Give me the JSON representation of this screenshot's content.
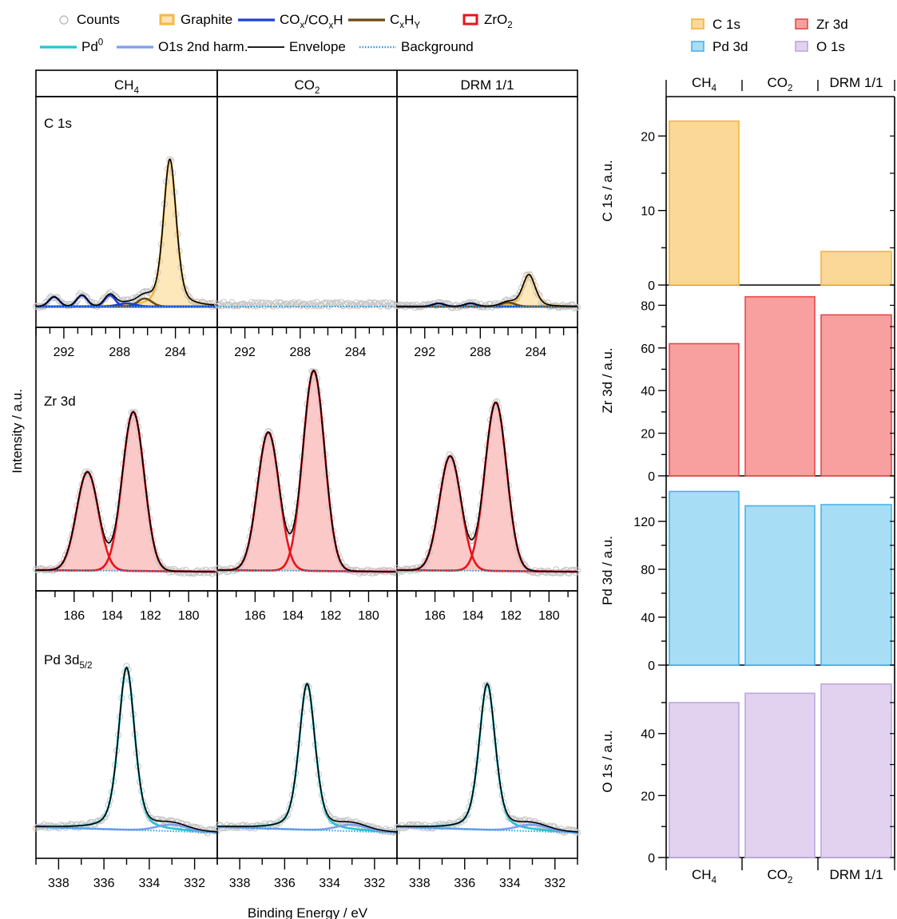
{
  "legend_left": {
    "items": [
      {
        "label": "Counts",
        "kind": "circle",
        "color": "#bdbdbd"
      },
      {
        "label": "Graphite",
        "kind": "box",
        "color": "#f5b942",
        "fill": "#fde4b0"
      },
      {
        "label": "CO",
        "sub1": "x",
        "mid": "/CO",
        "sub2": "x",
        "tail": "H",
        "kind": "line",
        "color": "#1f3fd6"
      },
      {
        "label": "C",
        "sub1": "x",
        "mid": "H",
        "sub2": "Y",
        "tail": "",
        "kind": "line",
        "color": "#6b4a12"
      },
      {
        "label": "ZrO",
        "sub1": "2",
        "kind": "box",
        "color": "#e8141b",
        "fill": "#ffffff"
      },
      {
        "label": "Pd",
        "sup": "0",
        "kind": "line",
        "color": "#22c5cf"
      },
      {
        "label": "O1s 2nd harm.",
        "kind": "line",
        "color": "#7f9ef0"
      },
      {
        "label": "Envelope",
        "kind": "line",
        "color": "#000000"
      },
      {
        "label": "Background",
        "kind": "dotted",
        "color": "#2a9fe0"
      }
    ]
  },
  "legend_right": {
    "items": [
      {
        "label": "C 1s",
        "fill": "#fcd898",
        "stroke": "#f0b440"
      },
      {
        "label": "Zr 3d",
        "fill": "#f8a0a0",
        "stroke": "#e84848"
      },
      {
        "label": "Pd 3d",
        "fill": "#a8ddf6",
        "stroke": "#48b4e8"
      },
      {
        "label": "O 1s",
        "fill": "#e2d2f0",
        "stroke": "#bca8dc"
      }
    ]
  },
  "conditions": [
    {
      "base": "CH",
      "sub": "4"
    },
    {
      "base": "CO",
      "sub": "2"
    },
    {
      "base": "DRM 1/1",
      "sub": ""
    }
  ],
  "spectra": {
    "ylabel": "Intensity / a.u.",
    "xlabel": "Binding Energy / eV",
    "rows": [
      {
        "label": "C 1s",
        "label_sub": "",
        "xrange": [
          294,
          281
        ],
        "ticks": [
          292,
          288,
          284
        ]
      },
      {
        "label": "Zr 3d",
        "label_sub": "",
        "xrange": [
          188,
          178.5
        ],
        "ticks": [
          186,
          184,
          182,
          180
        ]
      },
      {
        "label": "Pd 3d",
        "label_sub": "5/2",
        "xrange": [
          339,
          331
        ],
        "ticks": [
          338,
          336,
          334,
          332
        ]
      }
    ]
  },
  "chart_data": [
    {
      "type": "bar",
      "ylabel": "C 1s / a.u.",
      "categories": [
        "CH4",
        "CO2",
        "DRM 1/1"
      ],
      "values": [
        22,
        0,
        4.5
      ],
      "ylim": [
        0,
        24
      ],
      "yticks": [
        0,
        10,
        20
      ],
      "fill": "#fcd898",
      "stroke": "#f0b440"
    },
    {
      "type": "bar",
      "ylabel": "Zr 3d / a.u.",
      "categories": [
        "CH4",
        "CO2",
        "DRM 1/1"
      ],
      "values": [
        62,
        84,
        75.5
      ],
      "ylim": [
        0,
        85
      ],
      "yticks": [
        0,
        20,
        40,
        60,
        80
      ],
      "fill": "#f8a0a0",
      "stroke": "#e84848"
    },
    {
      "type": "bar",
      "ylabel": "Pd 3d / a.u.",
      "categories": [
        "CH4",
        "CO2",
        "DRM 1/1"
      ],
      "values": [
        145,
        133,
        134
      ],
      "ylim": [
        0,
        150
      ],
      "yticks": [
        0,
        40,
        80,
        120
      ],
      "fill": "#a8ddf6",
      "stroke": "#48b4e8"
    },
    {
      "type": "bar",
      "ylabel": "O 1s / a.u.",
      "categories": [
        "CH4",
        "CO2",
        "DRM 1/1"
      ],
      "values": [
        50,
        53,
        56
      ],
      "ylim": [
        0,
        59
      ],
      "yticks": [
        0,
        20,
        40
      ],
      "fill": "#e2d2f0",
      "stroke": "#bca8dc"
    }
  ]
}
